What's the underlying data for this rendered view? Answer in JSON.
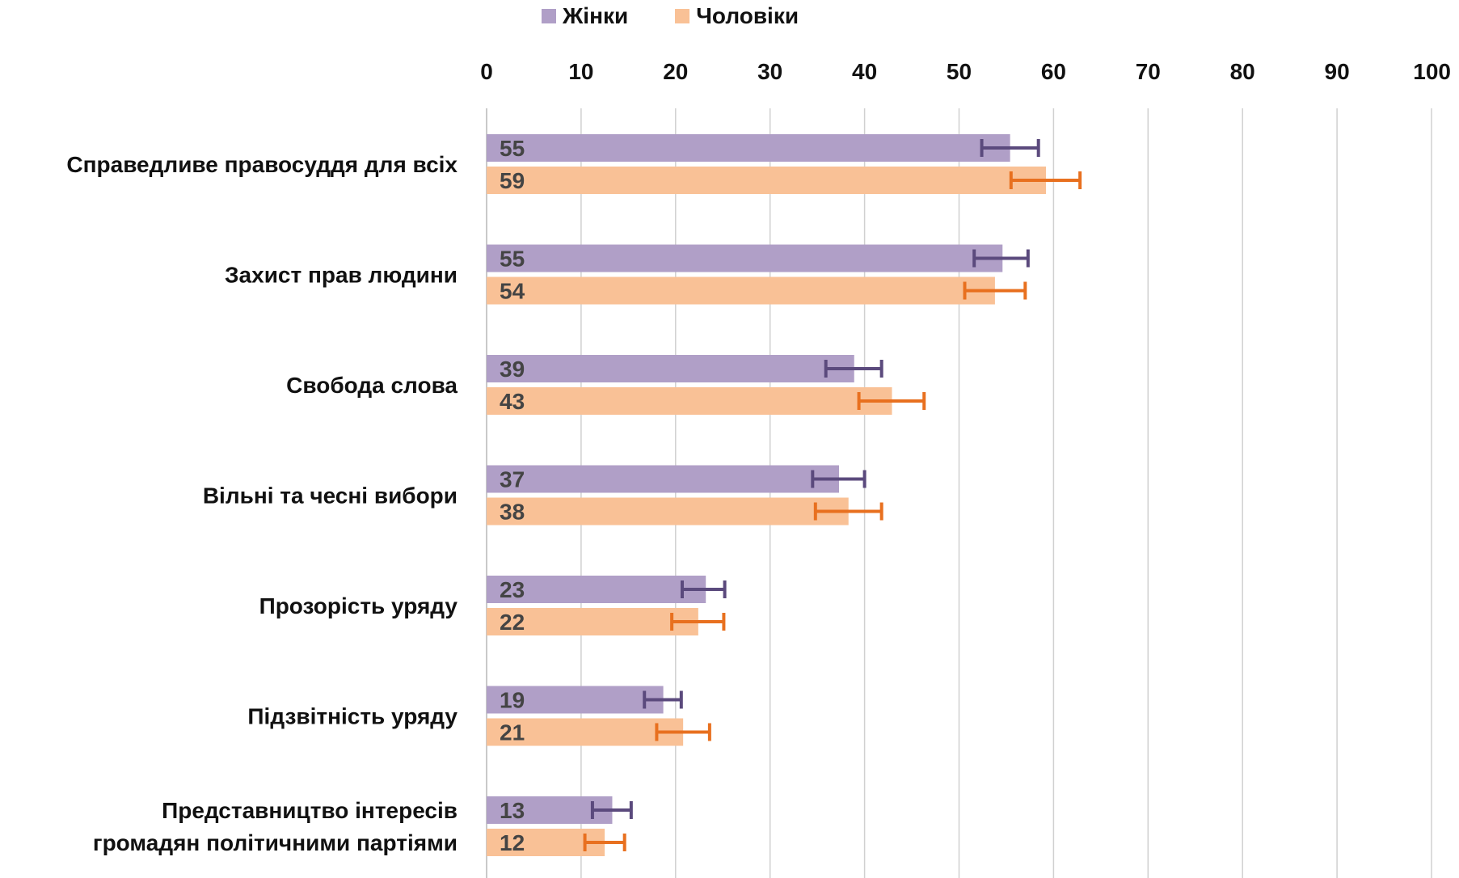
{
  "chart_data": {
    "type": "bar",
    "orientation": "horizontal",
    "categories": [
      [
        "Справедливе правосуддя для всіх"
      ],
      [
        "Захист прав людини"
      ],
      [
        "Свобода слова"
      ],
      [
        "Вільні та чесні вибори"
      ],
      [
        "Прозорість уряду"
      ],
      [
        "Підзвітність уряду"
      ],
      [
        "Представництво інтересів",
        "громадян політичними партіями"
      ]
    ],
    "series": [
      {
        "name": "Жінки",
        "color": "#b09fc7",
        "error_color": "#5b4a7d",
        "values": [
          55.4,
          54.6,
          38.9,
          37.3,
          23.2,
          18.7,
          13.3
        ],
        "labels": [
          "55",
          "55",
          "39",
          "37",
          "23",
          "19",
          "13"
        ],
        "error_low": [
          52.4,
          51.6,
          35.9,
          34.5,
          20.7,
          16.7,
          11.2
        ],
        "error_high": [
          58.4,
          57.3,
          41.8,
          40.0,
          25.2,
          20.6,
          15.3
        ]
      },
      {
        "name": "Чоловіки",
        "color": "#f9c196",
        "error_color": "#e8701f",
        "values": [
          59.2,
          53.8,
          42.9,
          38.3,
          22.4,
          20.8,
          12.5
        ],
        "labels": [
          "59",
          "54",
          "43",
          "38",
          "22",
          "21",
          "12"
        ],
        "error_low": [
          55.5,
          50.6,
          39.4,
          34.8,
          19.6,
          18.0,
          10.4
        ],
        "error_high": [
          62.8,
          57.0,
          46.3,
          41.8,
          25.1,
          23.6,
          14.6
        ]
      }
    ],
    "xlim": [
      0,
      100
    ],
    "xticks": [
      "0",
      "10",
      "20",
      "30",
      "40",
      "50",
      "60",
      "70",
      "80",
      "90",
      "100"
    ],
    "xaxis_position": "top",
    "grid": true,
    "legend_position": "top-center"
  }
}
